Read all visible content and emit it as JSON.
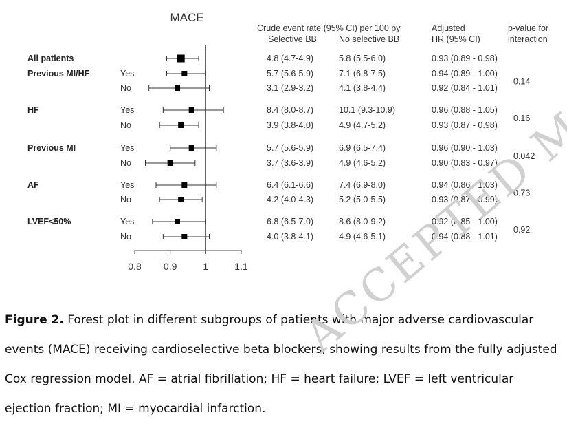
{
  "chart_data": {
    "type": "forest",
    "title": "MACE",
    "xlim": [
      0.8,
      1.1
    ],
    "x_ticks": [
      0.8,
      0.9,
      1,
      1.1
    ],
    "reference_line": 1,
    "headers": {
      "crude_line1": "Crude event rate (95% CI) per 100 py",
      "selective_bb": "Selective BB",
      "no_selective_bb": "No selective BB",
      "adjusted_line1": "Adjusted",
      "adjusted_line2": "HR (95% CI)",
      "pvalue_line1": "p-value for",
      "pvalue_line2": "interaction"
    },
    "groups": [
      {
        "name": "All patients",
        "p_interaction": "",
        "rows": [
          {
            "level": "",
            "hr": 0.93,
            "lo": 0.89,
            "hi": 0.98,
            "sel": "4.8 (4.7-4.9)",
            "nosel": "5.8 (5.5-6.0)",
            "adj": "0.93 (0.89 - 0.98)"
          }
        ]
      },
      {
        "name": "Previous MI/HF",
        "p_interaction": "0.14",
        "rows": [
          {
            "level": "Yes",
            "hr": 0.94,
            "lo": 0.89,
            "hi": 1.0,
            "sel": "5.7 (5.6-5.9)",
            "nosel": "7.1 (6.8-7.5)",
            "adj": "0.94 (0.89 - 1.00)"
          },
          {
            "level": "No",
            "hr": 0.92,
            "lo": 0.84,
            "hi": 1.01,
            "sel": "3.1 (2.9-3.2)",
            "nosel": "4.1 (3.8-4.4)",
            "adj": "0.92 (0.84 - 1.01)"
          }
        ]
      },
      {
        "name": "HF",
        "p_interaction": "0.16",
        "rows": [
          {
            "level": "Yes",
            "hr": 0.96,
            "lo": 0.88,
            "hi": 1.05,
            "sel": "8.4 (8.0-8.7)",
            "nosel": "10.1 (9.3-10.9)",
            "adj": "0.96 (0.88 - 1.05)"
          },
          {
            "level": "No",
            "hr": 0.93,
            "lo": 0.87,
            "hi": 0.98,
            "sel": "3.9 (3.8-4.0)",
            "nosel": "4.9 (4.7-5.2)",
            "adj": "0.93 (0.87 - 0.98)"
          }
        ]
      },
      {
        "name": "Previous MI",
        "p_interaction": "0.042",
        "rows": [
          {
            "level": "Yes",
            "hr": 0.96,
            "lo": 0.9,
            "hi": 1.03,
            "sel": "5.7 (5.6-5.9)",
            "nosel": "6.9 (6.5-7.4)",
            "adj": "0.96 (0.90 - 1.03)"
          },
          {
            "level": "No",
            "hr": 0.9,
            "lo": 0.83,
            "hi": 0.97,
            "sel": "3.7 (3.6-3.9)",
            "nosel": "4.9 (4.6-5.2)",
            "adj": "0.90 (0.83 - 0.97)"
          }
        ]
      },
      {
        "name": "AF",
        "p_interaction": "0.73",
        "rows": [
          {
            "level": "Yes",
            "hr": 0.94,
            "lo": 0.86,
            "hi": 1.03,
            "sel": "6.4 (6.1-6.6)",
            "nosel": "7.4 (6.9-8.0)",
            "adj": "0.94 (0.86 - 1.03)"
          },
          {
            "level": "No",
            "hr": 0.93,
            "lo": 0.87,
            "hi": 0.99,
            "sel": "4.2 (4.0-4.3)",
            "nosel": "5.2 (5.0-5.5)",
            "adj": "0.93 (0.87 - 0.99)"
          }
        ]
      },
      {
        "name": "LVEF<50%",
        "p_interaction": "0.92",
        "rows": [
          {
            "level": "Yes",
            "hr": 0.92,
            "lo": 0.85,
            "hi": 1.0,
            "sel": "6.8 (6.5-7.0)",
            "nosel": "8.6 (8.0-9.2)",
            "adj": "0.92 (0.85 - 1.00)"
          },
          {
            "level": "No",
            "hr": 0.94,
            "lo": 0.88,
            "hi": 1.01,
            "sel": "4.0 (3.8-4.1)",
            "nosel": "4.9 (4.6-5.1)",
            "adj": "0.94 (0.88 - 1.01)"
          }
        ]
      }
    ]
  },
  "caption": {
    "label": "Figure 2.",
    "text": " Forest plot in different subgroups of patients with major adverse cardiovascular events (MACE) receiving cardioselective beta blockers, showing results from the fully adjusted Cox regression model. AF = atrial fibrillation; HF = heart failure; LVEF = left ventricular ejection fraction; MI = myocardial infarction."
  },
  "watermark": "ACCEPTED MANUSCRIPT"
}
